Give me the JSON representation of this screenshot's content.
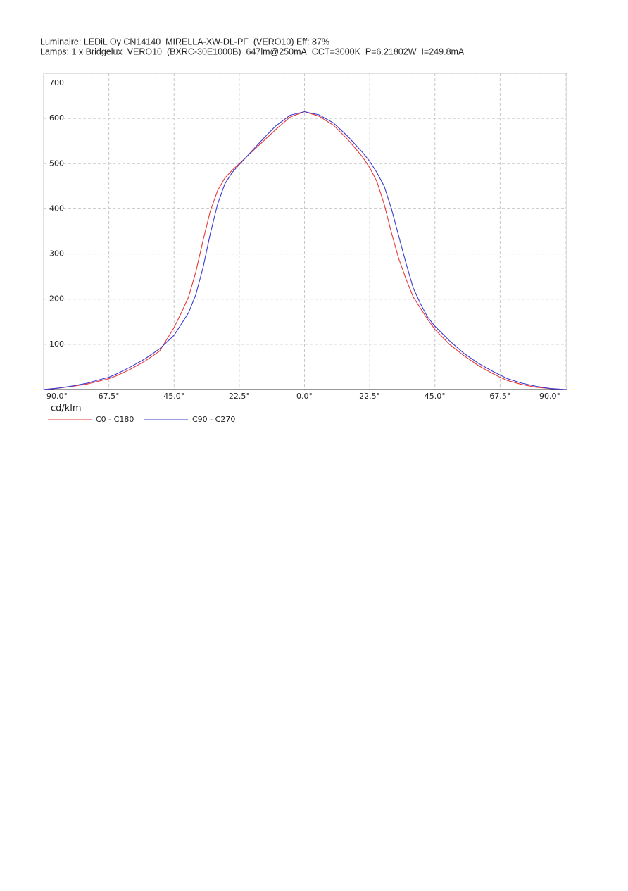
{
  "chart_data": {
    "type": "line",
    "title": "Luminaire: LEDiL Oy CN14140_MIRELLA-XW-DL-PF_(VERO10) Eff: 87%",
    "subtitle": "Lamps: 1 x Bridgelux_VERO10_(BXRC-30E1000B)_647lm@250mA_CCT=3000K_P=6.21802W_I=249.8mA",
    "y_label": "cd/klm",
    "x": [
      -90,
      -85,
      -80,
      -75,
      -70,
      -67.5,
      -65,
      -60,
      -55,
      -50,
      -45,
      -42.5,
      -40,
      -37.5,
      -35,
      -32.5,
      -30,
      -27.5,
      -25,
      -22.5,
      -20,
      -15,
      -10,
      -5,
      0,
      5,
      10,
      15,
      20,
      22.5,
      25,
      27.5,
      30,
      32.5,
      35,
      37.5,
      40,
      42.5,
      45,
      50,
      55,
      60,
      65,
      67.5,
      70,
      75,
      80,
      85,
      90
    ],
    "series": [
      {
        "name": "C0 - C180",
        "color": "#e8383a",
        "values": [
          0,
          3,
          7,
          12,
          20,
          24,
          30,
          45,
          63,
          85,
          137,
          170,
          205,
          260,
          330,
          395,
          440,
          468,
          485,
          500,
          515,
          545,
          575,
          603,
          615,
          605,
          585,
          553,
          515,
          491,
          460,
          410,
          347,
          290,
          245,
          205,
          180,
          155,
          133,
          100,
          75,
          53,
          35,
          27,
          20,
          11,
          5,
          2,
          0
        ]
      },
      {
        "name": "C90 - C270",
        "color": "#3a3ad0",
        "values": [
          0,
          3,
          8,
          14,
          23,
          27,
          34,
          50,
          68,
          90,
          120,
          145,
          170,
          210,
          270,
          345,
          410,
          455,
          480,
          498,
          515,
          550,
          583,
          607,
          615,
          608,
          590,
          560,
          525,
          505,
          480,
          450,
          400,
          340,
          280,
          225,
          190,
          160,
          140,
          108,
          80,
          58,
          40,
          32,
          24,
          14,
          7,
          2,
          0
        ]
      }
    ],
    "xlim": [
      -90,
      90
    ],
    "xticks": [
      {
        "value": -90,
        "label": "90.0°"
      },
      {
        "value": -67.5,
        "label": "67.5°"
      },
      {
        "value": -45,
        "label": "45.0°"
      },
      {
        "value": -22.5,
        "label": "22.5°"
      },
      {
        "value": 0,
        "label": "0.0°"
      },
      {
        "value": 22.5,
        "label": "22.5°"
      },
      {
        "value": 45,
        "label": "45.0°"
      },
      {
        "value": 67.5,
        "label": "67.5°"
      },
      {
        "value": 90,
        "label": "90.0°"
      }
    ],
    "ylim": [
      0,
      700
    ],
    "yticks": [
      100,
      200,
      300,
      400,
      500,
      600,
      700
    ],
    "grid": true
  }
}
